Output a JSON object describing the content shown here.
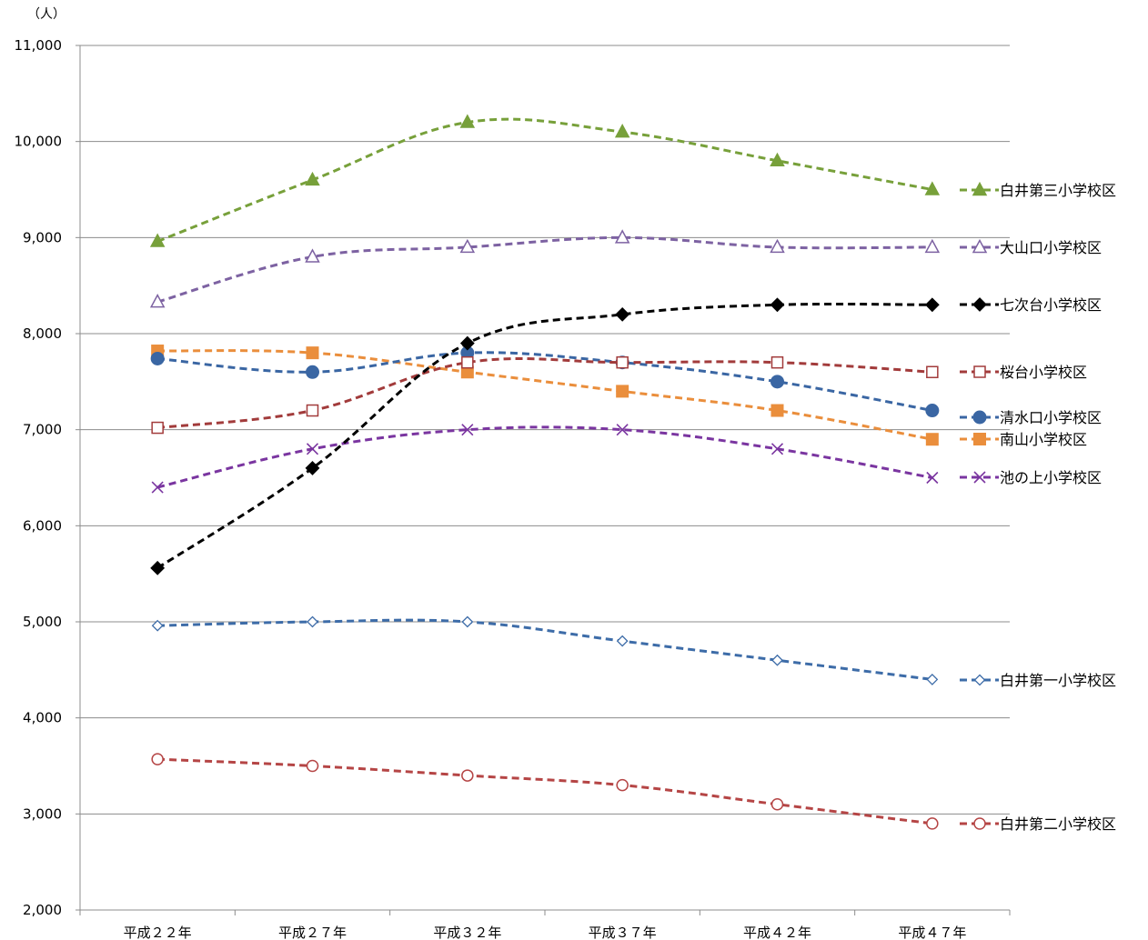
{
  "chart_data": {
    "type": "line",
    "unit_label": "（人）",
    "categories": [
      "平成２２年",
      "平成２７年",
      "平成３２年",
      "平成３７年",
      "平成４２年",
      "平成４７年"
    ],
    "ylim": [
      2000,
      11000
    ],
    "yticks": [
      2000,
      3000,
      4000,
      5000,
      6000,
      7000,
      8000,
      9000,
      10000,
      11000
    ],
    "ytick_labels": [
      "2,000",
      "3,000",
      "4,000",
      "5,000",
      "6,000",
      "7,000",
      "8,000",
      "9,000",
      "10,000",
      "11,000"
    ],
    "grid": true,
    "legend_placement": "right, inline at line ends",
    "series": [
      {
        "name": "白井第三小学校区",
        "values": [
          8960,
          9600,
          10200,
          10100,
          9800,
          9500
        ],
        "color": "#77A03A",
        "marker": "triangle-filled"
      },
      {
        "name": "大山口小学校区",
        "values": [
          8330,
          8800,
          8900,
          9000,
          8900,
          8900
        ],
        "color": "#7D62A2",
        "marker": "triangle-open"
      },
      {
        "name": "七次台小学校区",
        "values": [
          5560,
          6600,
          7900,
          8200,
          8300,
          8300
        ],
        "color": "#000000",
        "marker": "diamond-filled"
      },
      {
        "name": "桜台小学校区",
        "values": [
          7020,
          7200,
          7700,
          7700,
          7700,
          7600
        ],
        "color": "#A23B3B",
        "marker": "square-open"
      },
      {
        "name": "清水口小学校区",
        "values": [
          7740,
          7600,
          7800,
          7700,
          7500,
          7200
        ],
        "color": "#3A66A3",
        "marker": "circle-filled"
      },
      {
        "name": "南山小学校区",
        "values": [
          7820,
          7800,
          7600,
          7400,
          7200,
          6900
        ],
        "color": "#EA8E3C",
        "marker": "square-filled"
      },
      {
        "name": "池の上小学校区",
        "values": [
          6400,
          6800,
          7000,
          7000,
          6800,
          6500
        ],
        "color": "#7A35A0",
        "marker": "x"
      },
      {
        "name": "白井第一小学校区",
        "values": [
          4960,
          5000,
          5000,
          4800,
          4600,
          4400
        ],
        "color": "#3D6CA8",
        "marker": "diamond-open"
      },
      {
        "name": "白井第二小学校区",
        "values": [
          3570,
          3500,
          3400,
          3300,
          3100,
          2900
        ],
        "color": "#B54545",
        "marker": "circle-open"
      }
    ]
  }
}
